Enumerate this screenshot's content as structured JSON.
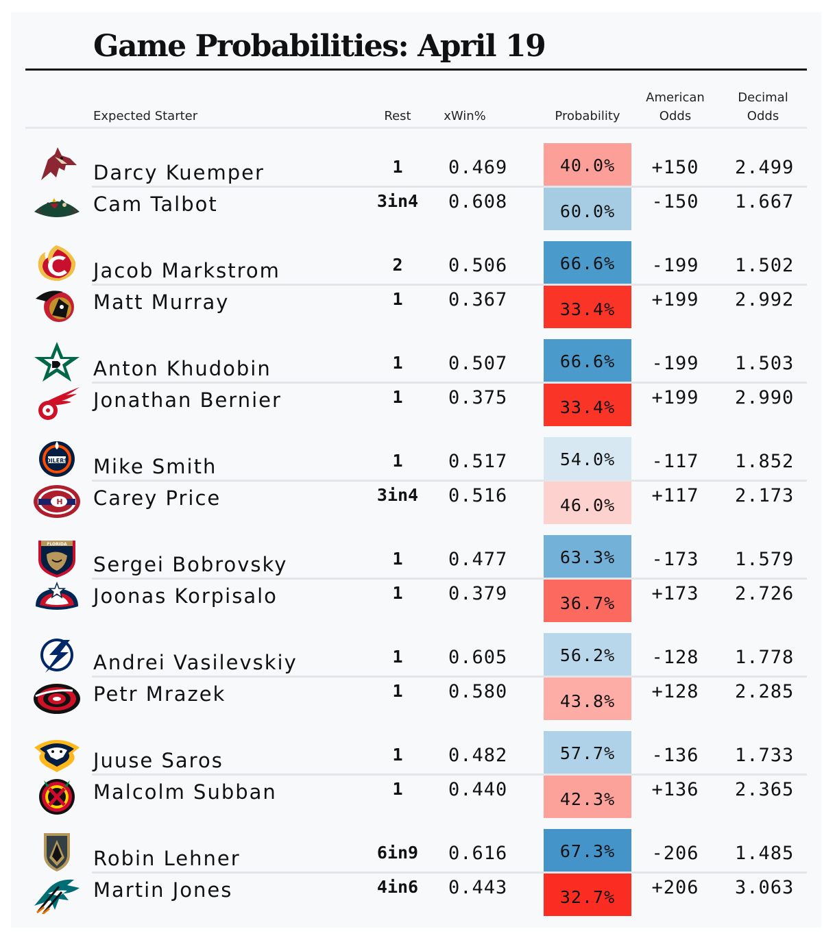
{
  "title": "Game Probabilities: April 19",
  "headers": {
    "starter": "Expected Starter",
    "rest": "Rest",
    "xwin": "xWin%",
    "prob": "Probability",
    "american_1": "American",
    "american_2": "Odds",
    "decimal_1": "Decimal",
    "decimal_2": "Odds"
  },
  "games": [
    {
      "top": {
        "logo": "coyotes-logo-icon",
        "name": "Darcy Kuemper",
        "rest": "1",
        "xwin": "0.469",
        "prob": "40.0%",
        "prob_color": "#fc9f99",
        "american": "+150",
        "decimal": "2.499"
      },
      "bottom": {
        "logo": "wild-logo-icon",
        "name": "Cam Talbot",
        "rest": "3in4",
        "xwin": "0.608",
        "prob": "60.0%",
        "prob_color": "#a6cce4",
        "american": "-150",
        "decimal": "1.667"
      }
    },
    {
      "top": {
        "logo": "flames-logo-icon",
        "name": "Jacob Markstrom",
        "rest": "2",
        "xwin": "0.506",
        "prob": "66.6%",
        "prob_color": "#4a9acc",
        "american": "-199",
        "decimal": "1.502"
      },
      "bottom": {
        "logo": "senators-logo-icon",
        "name": "Matt Murray",
        "rest": "1",
        "xwin": "0.367",
        "prob": "33.4%",
        "prob_color": "#fb3428",
        "american": "+199",
        "decimal": "2.992"
      }
    },
    {
      "top": {
        "logo": "stars-logo-icon",
        "name": "Anton Khudobin",
        "rest": "1",
        "xwin": "0.507",
        "prob": "66.6%",
        "prob_color": "#4a9acc",
        "american": "-199",
        "decimal": "1.503"
      },
      "bottom": {
        "logo": "red-wings-logo-icon",
        "name": "Jonathan Bernier",
        "rest": "1",
        "xwin": "0.375",
        "prob": "33.4%",
        "prob_color": "#fb3428",
        "american": "+199",
        "decimal": "2.990"
      }
    },
    {
      "top": {
        "logo": "oilers-logo-icon",
        "name": "Mike Smith",
        "rest": "1",
        "xwin": "0.517",
        "prob": "54.0%",
        "prob_color": "#d8e8f3",
        "american": "-117",
        "decimal": "1.852"
      },
      "bottom": {
        "logo": "canadiens-logo-icon",
        "name": "Carey Price",
        "rest": "3in4",
        "xwin": "0.516",
        "prob": "46.0%",
        "prob_color": "#fdd1cd",
        "american": "+117",
        "decimal": "2.173"
      }
    },
    {
      "top": {
        "logo": "panthers-logo-icon",
        "name": "Sergei Bobrovsky",
        "rest": "1",
        "xwin": "0.477",
        "prob": "63.3%",
        "prob_color": "#73b1d9",
        "american": "-173",
        "decimal": "1.579"
      },
      "bottom": {
        "logo": "blue-jackets-logo-icon",
        "name": "Joonas Korpisalo",
        "rest": "1",
        "xwin": "0.379",
        "prob": "36.7%",
        "prob_color": "#fc6a5f",
        "american": "+173",
        "decimal": "2.726"
      }
    },
    {
      "top": {
        "logo": "lightning-logo-icon",
        "name": "Andrei Vasilevskiy",
        "rest": "1",
        "xwin": "0.605",
        "prob": "56.2%",
        "prob_color": "#b9d7ea",
        "american": "-128",
        "decimal": "1.778"
      },
      "bottom": {
        "logo": "hurricanes-logo-icon",
        "name": "Petr Mrazek",
        "rest": "1",
        "xwin": "0.580",
        "prob": "43.8%",
        "prob_color": "#fdaca6",
        "american": "+128",
        "decimal": "2.285"
      }
    },
    {
      "top": {
        "logo": "predators-logo-icon",
        "name": "Juuse Saros",
        "rest": "1",
        "xwin": "0.482",
        "prob": "57.7%",
        "prob_color": "#afd2e8",
        "american": "-136",
        "decimal": "1.733"
      },
      "bottom": {
        "logo": "blackhawks-logo-icon",
        "name": "Malcolm Subban",
        "rest": "1",
        "xwin": "0.440",
        "prob": "42.3%",
        "prob_color": "#fda29b",
        "american": "+136",
        "decimal": "2.365"
      }
    },
    {
      "top": {
        "logo": "golden-knights-logo-icon",
        "name": "Robin Lehner",
        "rest": "6in9",
        "xwin": "0.616",
        "prob": "67.3%",
        "prob_color": "#4494c9",
        "american": "-206",
        "decimal": "1.485"
      },
      "bottom": {
        "logo": "sharks-logo-icon",
        "name": "Martin Jones",
        "rest": "4in6",
        "xwin": "0.443",
        "prob": "32.7%",
        "prob_color": "#fb2d22",
        "american": "+206",
        "decimal": "3.063"
      }
    }
  ]
}
